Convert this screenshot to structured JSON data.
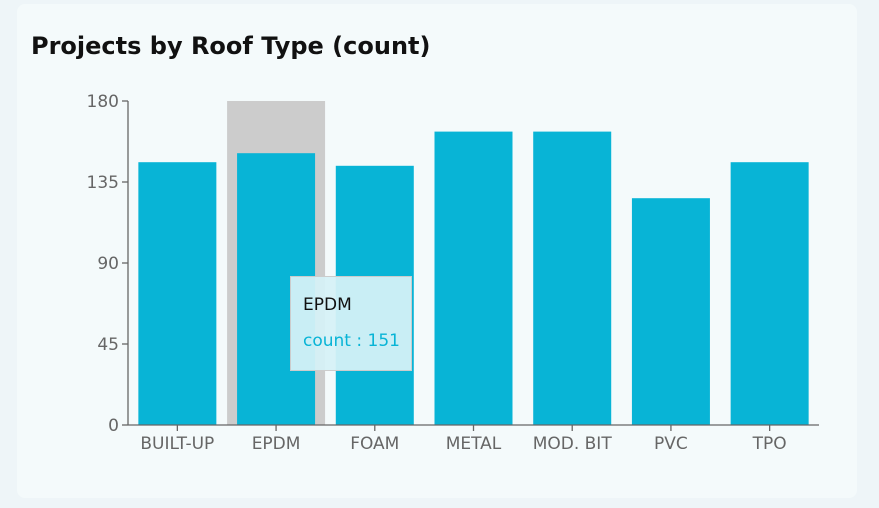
{
  "card": {
    "title": "Projects by Roof Type (count)"
  },
  "colors": {
    "bar": "#08b4d6",
    "highlight": "#cccccc",
    "axis": "#666666"
  },
  "chart_data": {
    "type": "bar",
    "title": "Projects by Roof Type (count)",
    "xlabel": "",
    "ylabel": "",
    "categories": [
      "BUILT-UP",
      "EPDM",
      "FOAM",
      "METAL",
      "MOD. BIT",
      "PVC",
      "TPO"
    ],
    "series": [
      {
        "values": [
          146,
          151,
          144,
          163,
          163,
          126,
          146
        ]
      }
    ],
    "ylim": [
      0,
      180
    ],
    "yticks": [
      0,
      45,
      90,
      135,
      180
    ],
    "grid": false,
    "legend": "none"
  },
  "tooltip": {
    "category": "EPDM",
    "line": "count : 151",
    "highlighted_index": 1
  }
}
